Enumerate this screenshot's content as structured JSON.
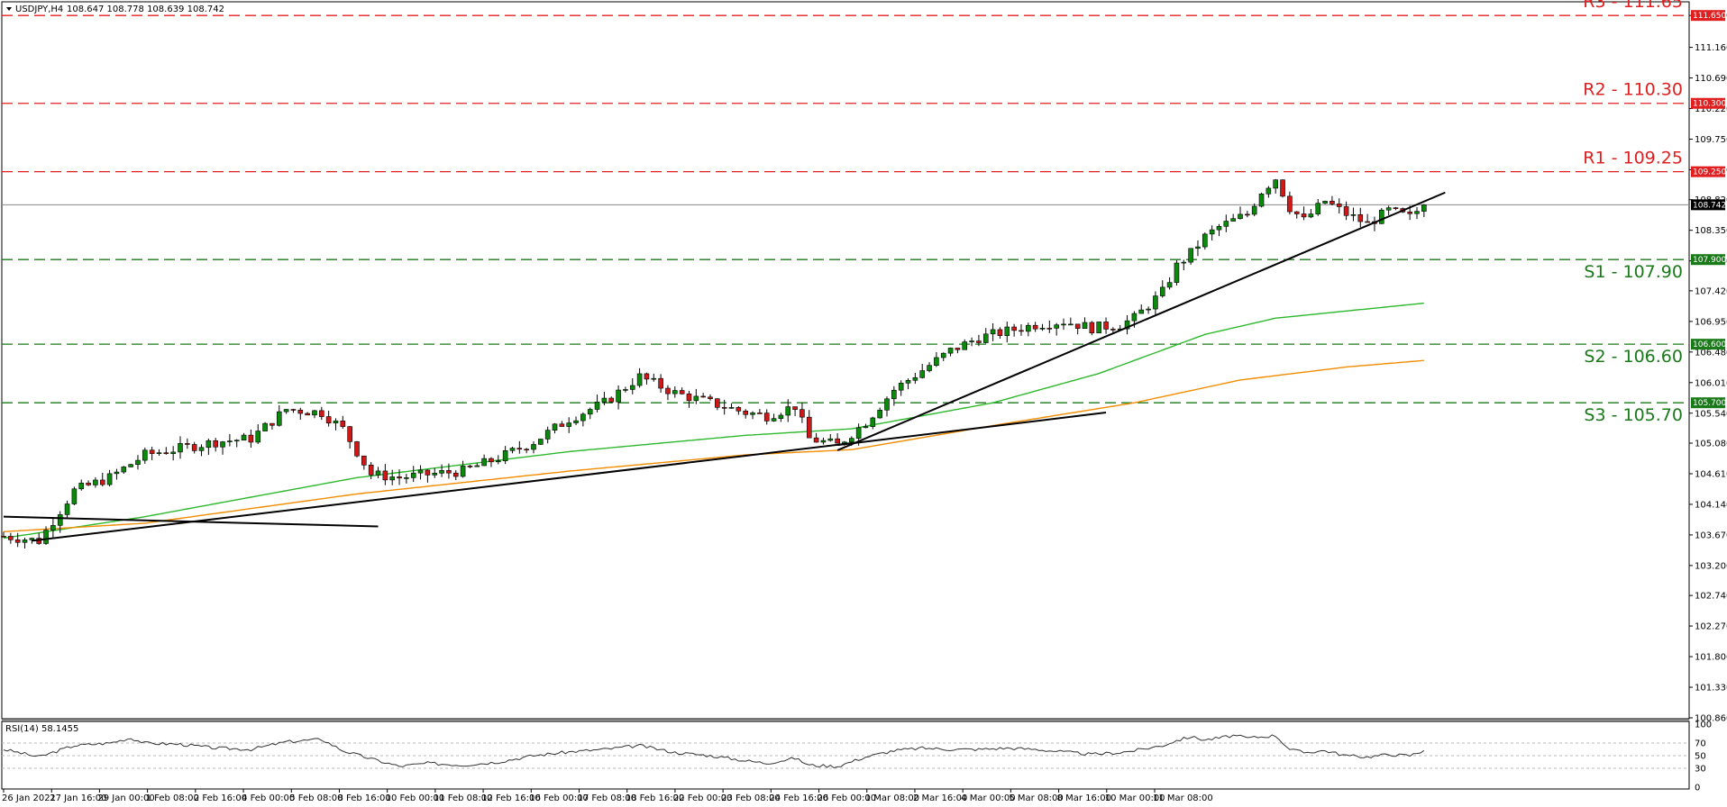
{
  "header": {
    "symbol": "USDJPY,H4",
    "ohlc": "108.647 108.778 108.639 108.742"
  },
  "rsi_header": "RSI(14) 58.1455",
  "colors": {
    "bull_body": "#0a8a0a",
    "bear_body": "#d01818",
    "resistance": "#e02020",
    "support": "#1a7a1a",
    "ma_fast": "#2db82d",
    "ma_slow": "#f28c00",
    "trendline": "#000000",
    "current_price_line": "#888888"
  },
  "levels": [
    {
      "name": "R3",
      "value": 111.65,
      "label": "R3 - 111.65",
      "box": "111.650",
      "type": "resistance"
    },
    {
      "name": "R2",
      "value": 110.3,
      "label": "R2 - 110.30",
      "box": "110.300",
      "type": "resistance"
    },
    {
      "name": "R1",
      "value": 109.25,
      "label": "R1 - 109.25",
      "box": "109.250",
      "type": "resistance"
    },
    {
      "name": "S1",
      "value": 107.9,
      "label": "S1 - 107.90",
      "box": "107.900",
      "type": "support"
    },
    {
      "name": "S2",
      "value": 106.6,
      "label": "S2 - 106.60",
      "box": "106.600",
      "type": "support"
    },
    {
      "name": "S3",
      "value": 105.7,
      "label": "S3 - 105.70",
      "box": "105.700",
      "type": "support"
    }
  ],
  "current_price": {
    "value": 108.742,
    "label": "108.742"
  },
  "chart_data": {
    "type": "candlestick",
    "symbol": "USDJPY",
    "timeframe": "H4",
    "ylim": [
      100.86,
      111.86
    ],
    "y_ticks": [
      "111.650",
      "111.160",
      "110.690",
      "110.220",
      "109.750",
      "109.280",
      "108.820",
      "108.350",
      "107.880",
      "107.420",
      "106.950",
      "106.480",
      "106.010",
      "105.540",
      "105.080",
      "104.610",
      "104.140",
      "103.670",
      "103.200",
      "102.740",
      "102.270",
      "101.800",
      "101.330",
      "100.860"
    ],
    "x_labels": [
      "26 Jan 2021",
      "27 Jan 16:00",
      "29 Jan 00:00",
      "1 Feb 08:00",
      "2 Feb 16:00",
      "4 Feb 00:00",
      "5 Feb 08:00",
      "8 Feb 16:00",
      "10 Feb 00:00",
      "11 Feb 08:00",
      "12 Feb 16:00",
      "16 Feb 00:00",
      "17 Feb 08:00",
      "18 Feb 16:00",
      "22 Feb 00:00",
      "23 Feb 08:00",
      "24 Feb 16:00",
      "26 Feb 00:00",
      "1 Mar 08:00",
      "2 Mar 16:00",
      "4 Mar 00:00",
      "5 Mar 08:00",
      "8 Mar 16:00",
      "10 Mar 00:00",
      "11 Mar 08:00"
    ],
    "close_path": [
      [
        0,
        103.65
      ],
      [
        5,
        103.58
      ],
      [
        10,
        104.35
      ],
      [
        15,
        104.55
      ],
      [
        20,
        104.9
      ],
      [
        25,
        105.0
      ],
      [
        30,
        105.1
      ],
      [
        35,
        105.15
      ],
      [
        40,
        105.6
      ],
      [
        45,
        105.55
      ],
      [
        48,
        105.3
      ],
      [
        52,
        104.6
      ],
      [
        56,
        104.55
      ],
      [
        60,
        104.6
      ],
      [
        65,
        104.65
      ],
      [
        70,
        104.85
      ],
      [
        75,
        105.1
      ],
      [
        80,
        105.45
      ],
      [
        85,
        105.7
      ],
      [
        90,
        106.1
      ],
      [
        95,
        105.85
      ],
      [
        100,
        105.7
      ],
      [
        105,
        105.55
      ],
      [
        108,
        105.5
      ],
      [
        112,
        105.65
      ],
      [
        114,
        105.15
      ],
      [
        118,
        105.05
      ],
      [
        122,
        105.4
      ],
      [
        126,
        105.9
      ],
      [
        130,
        106.2
      ],
      [
        134,
        106.5
      ],
      [
        138,
        106.7
      ],
      [
        142,
        106.8
      ],
      [
        146,
        106.9
      ],
      [
        150,
        106.95
      ],
      [
        154,
        106.85
      ],
      [
        158,
        106.9
      ],
      [
        160,
        107.0
      ],
      [
        164,
        107.4
      ],
      [
        166,
        107.8
      ],
      [
        168,
        108.0
      ],
      [
        170,
        108.25
      ],
      [
        172,
        108.4
      ],
      [
        174,
        108.5
      ],
      [
        176,
        108.6
      ],
      [
        178,
        108.95
      ],
      [
        180,
        109.15
      ],
      [
        182,
        108.7
      ],
      [
        184,
        108.5
      ],
      [
        187,
        108.8
      ],
      [
        190,
        108.6
      ],
      [
        193,
        108.45
      ],
      [
        196,
        108.65
      ],
      [
        199,
        108.55
      ],
      [
        201,
        108.742
      ]
    ],
    "ma_fast_path": [
      [
        0,
        103.62
      ],
      [
        20,
        103.95
      ],
      [
        50,
        104.55
      ],
      [
        80,
        104.95
      ],
      [
        105,
        105.2
      ],
      [
        120,
        105.3
      ],
      [
        140,
        105.7
      ],
      [
        155,
        106.15
      ],
      [
        170,
        106.75
      ],
      [
        180,
        107.0
      ],
      [
        201,
        107.23
      ]
    ],
    "ma_slow_path": [
      [
        0,
        103.72
      ],
      [
        20,
        103.85
      ],
      [
        50,
        104.3
      ],
      [
        80,
        104.65
      ],
      [
        105,
        104.9
      ],
      [
        120,
        104.98
      ],
      [
        140,
        105.35
      ],
      [
        160,
        105.7
      ],
      [
        175,
        106.05
      ],
      [
        190,
        106.25
      ],
      [
        201,
        106.35
      ]
    ],
    "trendlines": [
      {
        "from": [
          0,
          103.95
        ],
        "to": [
          53,
          103.8
        ]
      },
      {
        "from": [
          4,
          103.58
        ],
        "to": [
          120,
          105.08
        ]
      },
      {
        "from": [
          118,
          105.05
        ],
        "to": [
          156,
          105.55
        ]
      },
      {
        "from": [
          118,
          104.97
        ],
        "to": [
          204,
          108.93
        ]
      }
    ],
    "rsi": {
      "period": 14,
      "value": 58.1455,
      "ylim": [
        0,
        100
      ],
      "ticks": [
        100,
        70,
        50,
        30,
        0
      ],
      "path": [
        [
          0,
          60
        ],
        [
          5,
          48
        ],
        [
          10,
          66
        ],
        [
          15,
          70
        ],
        [
          18,
          78
        ],
        [
          20,
          70
        ],
        [
          25,
          68
        ],
        [
          30,
          62
        ],
        [
          35,
          60
        ],
        [
          40,
          72
        ],
        [
          45,
          76
        ],
        [
          48,
          58
        ],
        [
          52,
          45
        ],
        [
          56,
          33
        ],
        [
          60,
          38
        ],
        [
          65,
          35
        ],
        [
          70,
          40
        ],
        [
          75,
          50
        ],
        [
          80,
          56
        ],
        [
          85,
          60
        ],
        [
          90,
          66
        ],
        [
          95,
          55
        ],
        [
          100,
          50
        ],
        [
          105,
          42
        ],
        [
          108,
          38
        ],
        [
          112,
          46
        ],
        [
          114,
          35
        ],
        [
          118,
          33
        ],
        [
          122,
          48
        ],
        [
          126,
          58
        ],
        [
          130,
          62
        ],
        [
          134,
          60
        ],
        [
          138,
          60
        ],
        [
          142,
          62
        ],
        [
          146,
          60
        ],
        [
          150,
          56
        ],
        [
          154,
          52
        ],
        [
          158,
          55
        ],
        [
          160,
          58
        ],
        [
          164,
          66
        ],
        [
          166,
          74
        ],
        [
          168,
          80
        ],
        [
          170,
          75
        ],
        [
          172,
          78
        ],
        [
          174,
          82
        ],
        [
          176,
          78
        ],
        [
          178,
          80
        ],
        [
          180,
          82
        ],
        [
          182,
          60
        ],
        [
          184,
          55
        ],
        [
          187,
          58
        ],
        [
          190,
          50
        ],
        [
          193,
          48
        ],
        [
          196,
          52
        ],
        [
          199,
          50
        ],
        [
          201,
          58
        ]
      ]
    }
  }
}
